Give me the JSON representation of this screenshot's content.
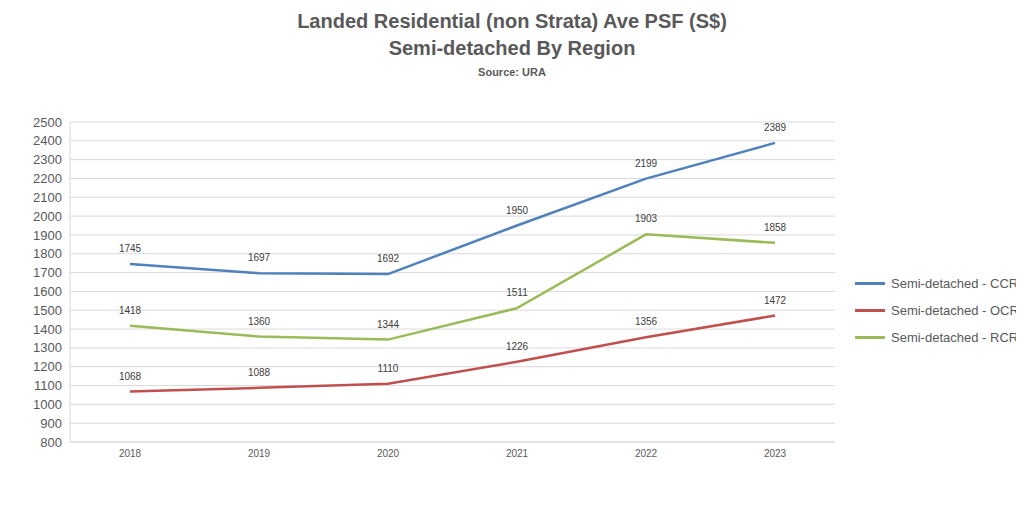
{
  "chart_data": {
    "type": "line",
    "title": "Landed Residential (non Strata) Ave PSF (S$)\nSemi-detached By Region",
    "subtitle": "Source: URA",
    "categories": [
      "2018",
      "2019",
      "2020",
      "2021",
      "2022",
      "2023"
    ],
    "series": [
      {
        "name": "Semi-detached - CCR",
        "color": "#4f81bd",
        "values": [
          1745,
          1697,
          1692,
          1950,
          2199,
          2389
        ]
      },
      {
        "name": "Semi-detached - OCR",
        "color": "#c0504d",
        "values": [
          1068,
          1088,
          1110,
          1226,
          1356,
          1472
        ]
      },
      {
        "name": "Semi-detached - RCR",
        "color": "#9bbb59",
        "values": [
          1418,
          1360,
          1344,
          1511,
          1903,
          1858
        ]
      }
    ],
    "ylim": [
      800,
      2500
    ],
    "yticks": [
      800,
      900,
      1000,
      1100,
      1200,
      1300,
      1400,
      1500,
      1600,
      1700,
      1800,
      1900,
      2000,
      2100,
      2200,
      2300,
      2400,
      2500
    ],
    "grid": true,
    "legend": "right",
    "data_labels": true,
    "marker": "none",
    "line_style": "solid"
  }
}
